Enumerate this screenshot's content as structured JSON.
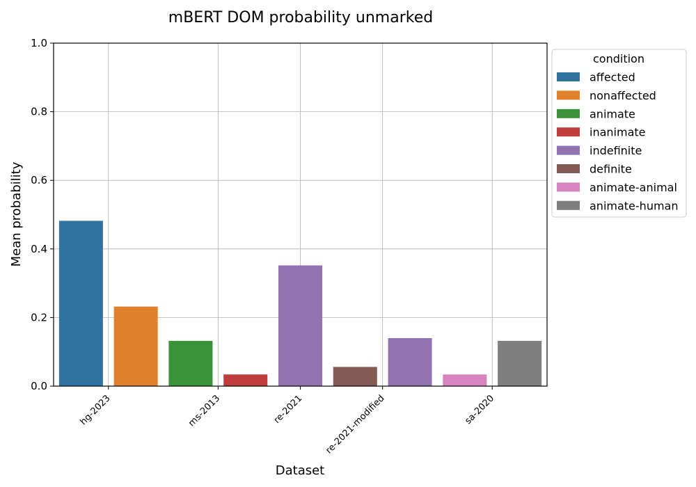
{
  "chart_data": {
    "type": "bar",
    "title": "mBERT DOM probability unmarked",
    "xlabel": "Dataset",
    "ylabel": "Mean probability",
    "ylim": [
      0,
      1.0
    ],
    "yticks": [
      "0.0",
      "0.2",
      "0.4",
      "0.6",
      "0.8",
      "1.0"
    ],
    "grid": true,
    "legend": {
      "title": "condition",
      "placement": "outside-right",
      "entries": [
        {
          "name": "affected",
          "color": "#3274a1"
        },
        {
          "name": "nonaffected",
          "color": "#e1812c"
        },
        {
          "name": "animate",
          "color": "#3a923a"
        },
        {
          "name": "inanimate",
          "color": "#c03d3e"
        },
        {
          "name": "indefinite",
          "color": "#9372b2"
        },
        {
          "name": "definite",
          "color": "#845b53"
        },
        {
          "name": "animate-animal",
          "color": "#d684bd"
        },
        {
          "name": "animate-human",
          "color": "#7f7f7f"
        }
      ]
    },
    "categories": [
      "hg-2023",
      "ms-2013",
      "re-2021",
      "re-2021-modified",
      "sa-2020"
    ],
    "bars": [
      {
        "category": "hg-2023",
        "condition": "affected",
        "value": 0.482
      },
      {
        "category": "hg-2023",
        "condition": "nonaffected",
        "value": 0.232
      },
      {
        "category": "ms-2013",
        "condition": "animate",
        "value": 0.132
      },
      {
        "category": "ms-2013",
        "condition": "inanimate",
        "value": 0.034
      },
      {
        "category": "re-2021",
        "condition": "indefinite",
        "value": 0.352
      },
      {
        "category": "re-2021-modified",
        "condition": "definite",
        "value": 0.056
      },
      {
        "category": "re-2021-modified",
        "condition": "indefinite",
        "value": 0.14
      },
      {
        "category": "sa-2020",
        "condition": "animate-animal",
        "value": 0.034
      },
      {
        "category": "sa-2020",
        "condition": "animate-human",
        "value": 0.132
      }
    ]
  }
}
